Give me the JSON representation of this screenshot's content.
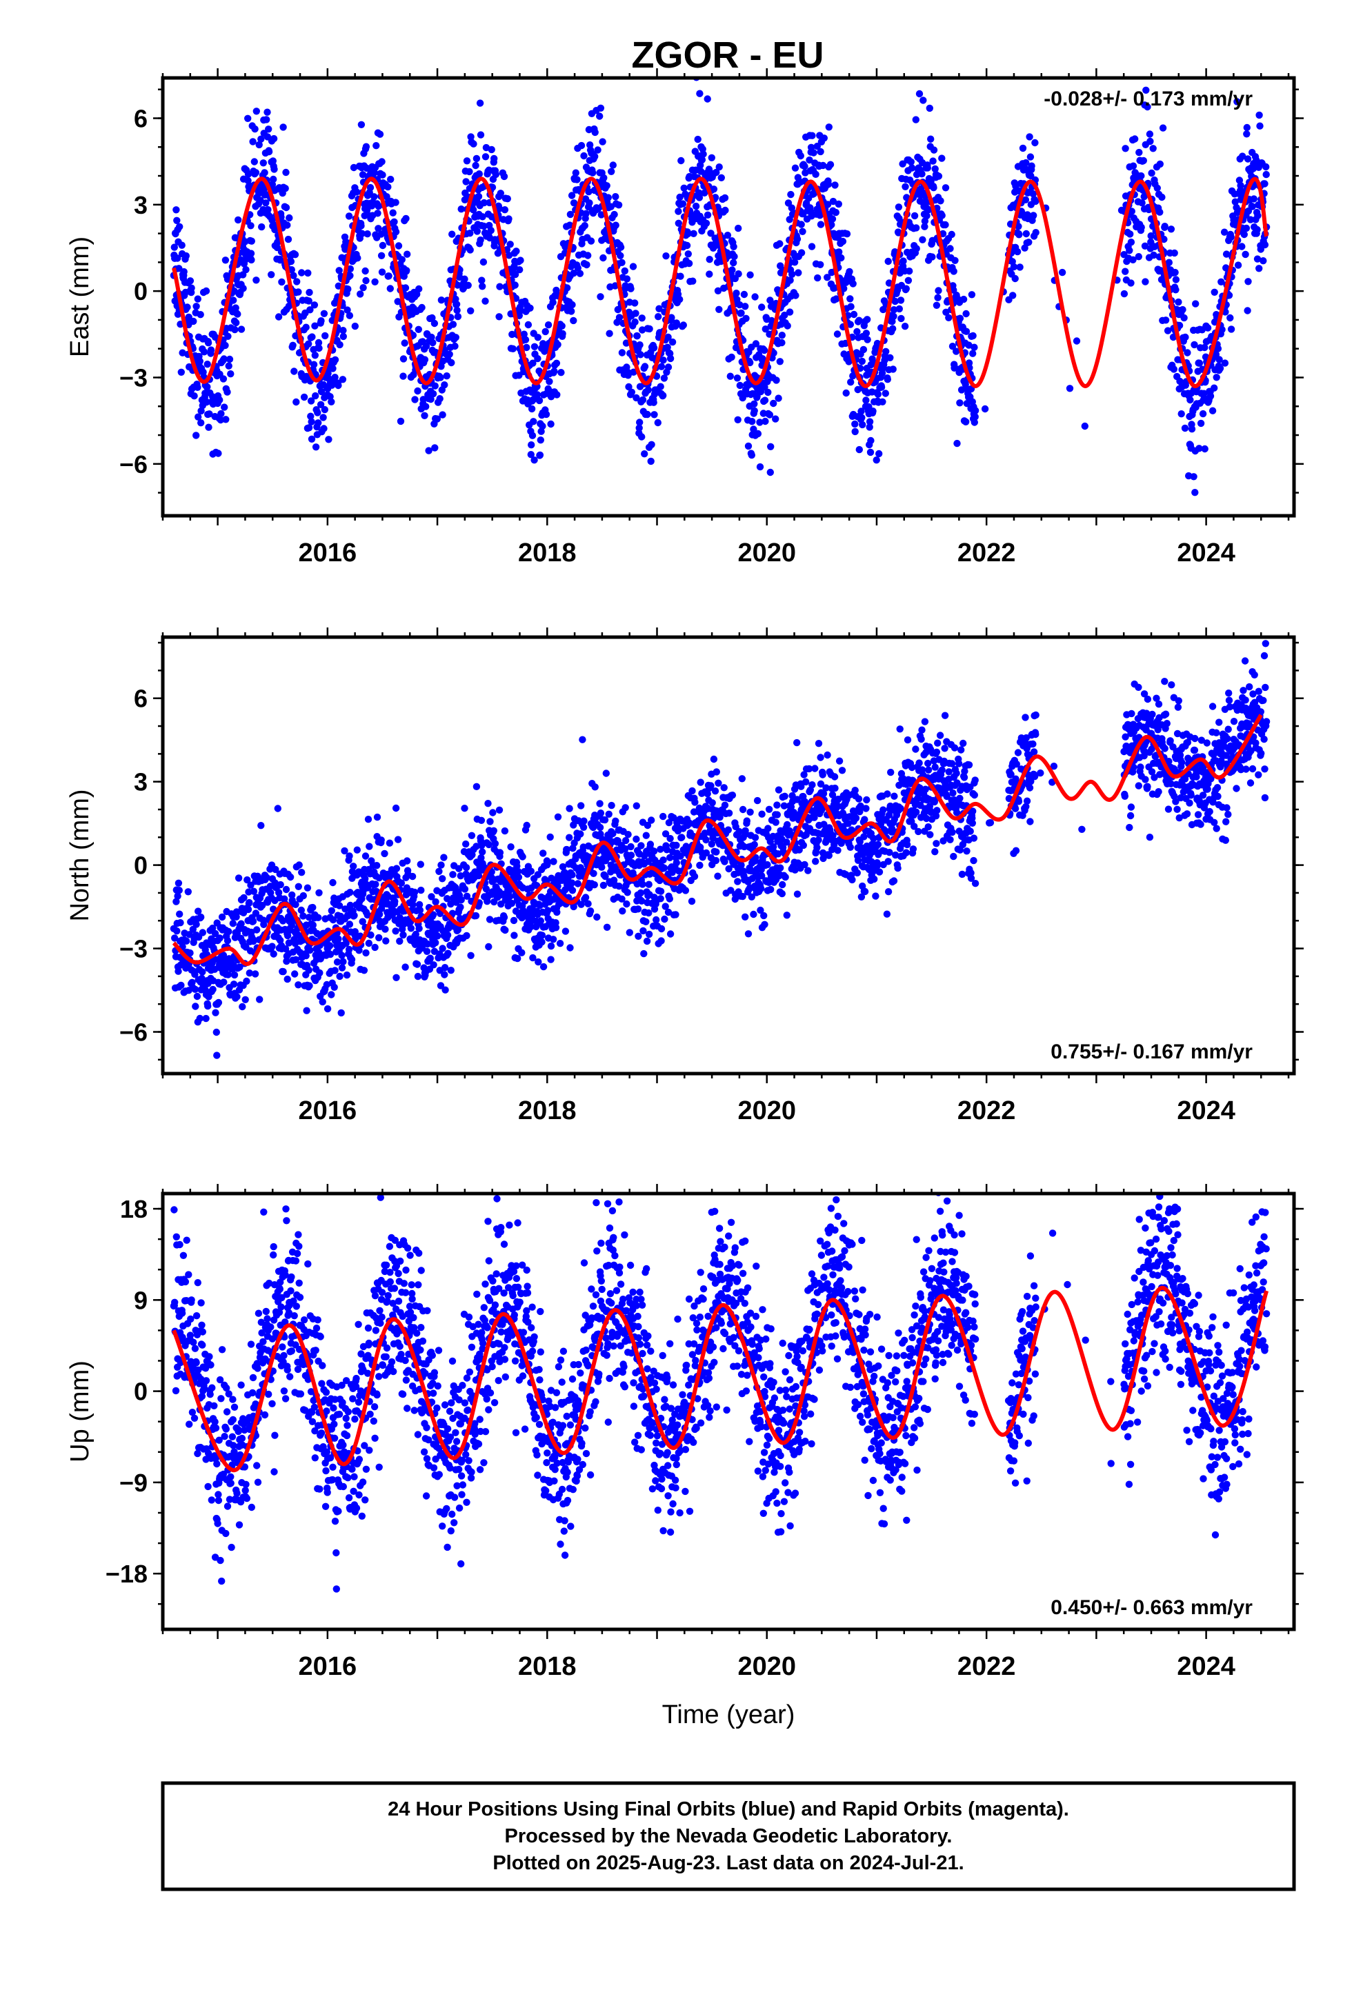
{
  "page": {
    "title": "ZGOR - EU",
    "footer_lines": [
      "24 Hour Positions Using Final Orbits (blue) and Rapid Orbits (magenta).",
      "Processed by the Nevada Geodetic Laboratory.",
      "Plotted on 2025-Aug-23. Last data on 2024-Jul-21."
    ]
  },
  "colors": {
    "points": "#0000ff",
    "fit": "#ff0000",
    "frame": "#000000"
  },
  "chart_data": [
    {
      "type": "scatter",
      "ylabel": "East (mm)",
      "rate_text": "-0.028+/- 0.173 mm/yr",
      "rate_position": "top-right",
      "xlim": [
        2014.5,
        2024.8
      ],
      "ylim": [
        -7.8,
        7.4
      ],
      "yticks": [
        -6,
        -3,
        0,
        3,
        6
      ],
      "ytick_labels": [
        "−6",
        "−3",
        "0",
        "3",
        "6"
      ],
      "xticks": [
        2016,
        2018,
        2020,
        2022,
        2024
      ],
      "xtick_labels": [
        "2016",
        "2018",
        "2020",
        "2022",
        "2024"
      ],
      "xlabel": "",
      "data_span": [
        2014.6,
        2024.55
      ],
      "gaps": [
        [
          2021.9,
          2022.2
        ],
        [
          2022.45,
          2023.25
        ]
      ],
      "series": [
        {
          "kind": "points",
          "description_values": {
            "amplitude": 3.5,
            "phase_peak_year_fraction": 0.42,
            "offset": 0.3,
            "trend_per_yr": -0.028,
            "scatter_sd": 1.2
          },
          "marker": "dot"
        },
        {
          "kind": "fit-line",
          "values": [
            [
              2014.6,
              0.8
            ],
            [
              2014.9,
              -3.1
            ],
            [
              2015.4,
              3.9
            ],
            [
              2015.9,
              -3.1
            ],
            [
              2016.4,
              3.9
            ],
            [
              2016.9,
              -3.2
            ],
            [
              2017.4,
              3.9
            ],
            [
              2017.9,
              -3.2
            ],
            [
              2018.4,
              3.9
            ],
            [
              2018.9,
              -3.2
            ],
            [
              2019.4,
              3.9
            ],
            [
              2019.9,
              -3.2
            ],
            [
              2020.4,
              3.8
            ],
            [
              2020.9,
              -3.3
            ],
            [
              2021.4,
              3.8
            ],
            [
              2021.9,
              -3.3
            ],
            [
              2022.4,
              3.8
            ],
            [
              2022.9,
              -3.3
            ],
            [
              2023.4,
              3.8
            ],
            [
              2023.9,
              -3.3
            ],
            [
              2024.4,
              3.7
            ],
            [
              2024.55,
              1.9
            ]
          ]
        }
      ]
    },
    {
      "type": "scatter",
      "ylabel": "North (mm)",
      "rate_text": "0.755+/- 0.167 mm/yr",
      "rate_position": "bottom-right",
      "xlim": [
        2014.5,
        2024.8
      ],
      "ylim": [
        -7.5,
        8.2
      ],
      "yticks": [
        -6,
        -3,
        0,
        3,
        6
      ],
      "ytick_labels": [
        "−6",
        "−3",
        "0",
        "3",
        "6"
      ],
      "xticks": [
        2016,
        2018,
        2020,
        2022,
        2024
      ],
      "xtick_labels": [
        "2016",
        "2018",
        "2020",
        "2022",
        "2024"
      ],
      "xlabel": "",
      "data_span": [
        2014.6,
        2024.55
      ],
      "gaps": [
        [
          2021.9,
          2022.2
        ],
        [
          2022.45,
          2023.25
        ]
      ],
      "series": [
        {
          "kind": "points",
          "description_values": {
            "amplitude": 0.9,
            "phase_peak_year_fraction": 0.45,
            "offset": -3.2,
            "trend_per_yr": 0.755,
            "scatter_sd": 1.0
          },
          "marker": "dot"
        },
        {
          "kind": "fit-line",
          "values": [
            [
              2014.6,
              -2.8
            ],
            [
              2014.8,
              -3.5
            ],
            [
              2015.1,
              -3.0
            ],
            [
              2015.3,
              -3.5
            ],
            [
              2015.6,
              -1.4
            ],
            [
              2015.85,
              -2.8
            ],
            [
              2016.1,
              -2.3
            ],
            [
              2016.3,
              -2.8
            ],
            [
              2016.55,
              -0.6
            ],
            [
              2016.8,
              -2.0
            ],
            [
              2017.0,
              -1.5
            ],
            [
              2017.25,
              -2.1
            ],
            [
              2017.5,
              0.0
            ],
            [
              2017.8,
              -1.2
            ],
            [
              2018.0,
              -0.7
            ],
            [
              2018.25,
              -1.3
            ],
            [
              2018.5,
              0.8
            ],
            [
              2018.75,
              -0.5
            ],
            [
              2018.95,
              -0.1
            ],
            [
              2019.2,
              -0.6
            ],
            [
              2019.45,
              1.6
            ],
            [
              2019.75,
              0.2
            ],
            [
              2019.95,
              0.6
            ],
            [
              2020.15,
              0.2
            ],
            [
              2020.45,
              2.4
            ],
            [
              2020.7,
              1.0
            ],
            [
              2020.95,
              1.5
            ],
            [
              2021.15,
              0.9
            ],
            [
              2021.4,
              3.1
            ],
            [
              2021.7,
              1.7
            ],
            [
              2021.9,
              2.2
            ],
            [
              2022.15,
              1.7
            ],
            [
              2022.45,
              3.9
            ],
            [
              2022.75,
              2.4
            ],
            [
              2022.95,
              3.0
            ],
            [
              2023.15,
              2.4
            ],
            [
              2023.45,
              4.6
            ],
            [
              2023.7,
              3.2
            ],
            [
              2023.95,
              3.8
            ],
            [
              2024.15,
              3.2
            ],
            [
              2024.5,
              5.4
            ]
          ]
        }
      ]
    },
    {
      "type": "scatter",
      "ylabel": "Up (mm)",
      "rate_text": "0.450+/- 0.663 mm/yr",
      "rate_position": "bottom-right",
      "xlim": [
        2014.5,
        2024.8
      ],
      "ylim": [
        -23.5,
        19.5
      ],
      "yticks": [
        -18,
        -9,
        0,
        9,
        18
      ],
      "ytick_labels": [
        "−18",
        "−9",
        "0",
        "9",
        "18"
      ],
      "xticks": [
        2016,
        2018,
        2020,
        2022,
        2024
      ],
      "xtick_labels": [
        "2016",
        "2018",
        "2020",
        "2022",
        "2024"
      ],
      "xlabel": "Time (year)",
      "data_span": [
        2014.6,
        2024.55
      ],
      "gaps": [
        [
          2021.9,
          2022.2
        ],
        [
          2022.45,
          2023.25
        ]
      ],
      "series": [
        {
          "kind": "points",
          "description_values": {
            "amplitude": 7.5,
            "phase_peak_year_fraction": 0.62,
            "offset": 0.0,
            "trend_per_yr": 0.45,
            "scatter_sd": 4.2
          },
          "marker": "dot"
        },
        {
          "kind": "fit-line",
          "values": [
            [
              2014.6,
              6.0
            ],
            [
              2015.15,
              -7.8
            ],
            [
              2015.65,
              6.5
            ],
            [
              2016.15,
              -7.2
            ],
            [
              2016.6,
              7.1
            ],
            [
              2017.15,
              -6.6
            ],
            [
              2017.6,
              7.6
            ],
            [
              2018.15,
              -6.1
            ],
            [
              2018.62,
              8.0
            ],
            [
              2019.15,
              -5.6
            ],
            [
              2019.6,
              8.5
            ],
            [
              2020.15,
              -5.1
            ],
            [
              2020.6,
              9.0
            ],
            [
              2021.15,
              -4.6
            ],
            [
              2021.6,
              9.4
            ],
            [
              2022.15,
              -4.3
            ],
            [
              2022.62,
              9.8
            ],
            [
              2023.15,
              -3.8
            ],
            [
              2023.6,
              10.2
            ],
            [
              2024.15,
              -3.4
            ],
            [
              2024.55,
              9.9
            ]
          ]
        }
      ]
    }
  ]
}
